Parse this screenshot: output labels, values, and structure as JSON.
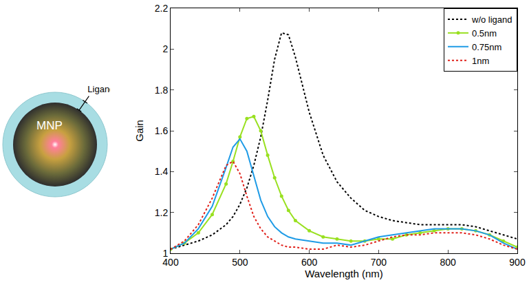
{
  "diagram": {
    "core_label": "MNP",
    "shell_label": "Ligand"
  },
  "chart_data": {
    "type": "line",
    "x_label": "Wavelength (nm)",
    "y_label": "Gain",
    "x": [
      400,
      420,
      440,
      460,
      480,
      490,
      500,
      510,
      520,
      530,
      540,
      550,
      560,
      570,
      580,
      600,
      620,
      640,
      660,
      680,
      700,
      720,
      740,
      760,
      780,
      800,
      820,
      840,
      860,
      880,
      900
    ],
    "series": [
      {
        "name": "w/o ligand",
        "color": "#000000",
        "line_style": "dotted",
        "values": [
          1.02,
          1.04,
          1.06,
          1.09,
          1.14,
          1.18,
          1.24,
          1.32,
          1.43,
          1.57,
          1.75,
          1.95,
          2.08,
          2.07,
          1.96,
          1.69,
          1.48,
          1.35,
          1.27,
          1.21,
          1.18,
          1.16,
          1.15,
          1.14,
          1.14,
          1.14,
          1.14,
          1.13,
          1.11,
          1.09,
          1.07
        ]
      },
      {
        "name": "0.5nm",
        "color": "#99e020",
        "line_style": "solid",
        "marker": "circle",
        "values": [
          1.02,
          1.05,
          1.1,
          1.19,
          1.34,
          1.45,
          1.57,
          1.66,
          1.67,
          1.6,
          1.48,
          1.37,
          1.28,
          1.21,
          1.16,
          1.11,
          1.08,
          1.07,
          1.06,
          1.06,
          1.07,
          1.07,
          1.09,
          1.1,
          1.11,
          1.12,
          1.12,
          1.11,
          1.09,
          1.06,
          1.03
        ]
      },
      {
        "name": "0.75nm",
        "color": "#1e9be6",
        "line_style": "solid",
        "values": [
          1.02,
          1.05,
          1.12,
          1.23,
          1.42,
          1.52,
          1.56,
          1.5,
          1.38,
          1.26,
          1.18,
          1.13,
          1.1,
          1.08,
          1.07,
          1.06,
          1.05,
          1.05,
          1.04,
          1.06,
          1.08,
          1.09,
          1.1,
          1.11,
          1.12,
          1.12,
          1.12,
          1.11,
          1.09,
          1.05,
          1.02
        ]
      },
      {
        "name": "1nm",
        "color": "#e0201a",
        "line_style": "dotted",
        "values": [
          1.02,
          1.06,
          1.14,
          1.27,
          1.43,
          1.45,
          1.39,
          1.28,
          1.18,
          1.12,
          1.08,
          1.06,
          1.04,
          1.03,
          1.03,
          1.02,
          1.02,
          1.04,
          1.03,
          1.04,
          1.06,
          1.08,
          1.09,
          1.09,
          1.1,
          1.1,
          1.1,
          1.09,
          1.07,
          1.04,
          1.02
        ]
      }
    ],
    "xlim": [
      400,
      900
    ],
    "xticks": [
      400,
      500,
      600,
      700,
      800,
      900
    ],
    "ylim": [
      1,
      2.2
    ],
    "yticks": [
      1,
      1.2,
      1.4,
      1.6,
      1.8,
      2,
      2.2
    ],
    "grid": false,
    "legend": "northeast"
  }
}
